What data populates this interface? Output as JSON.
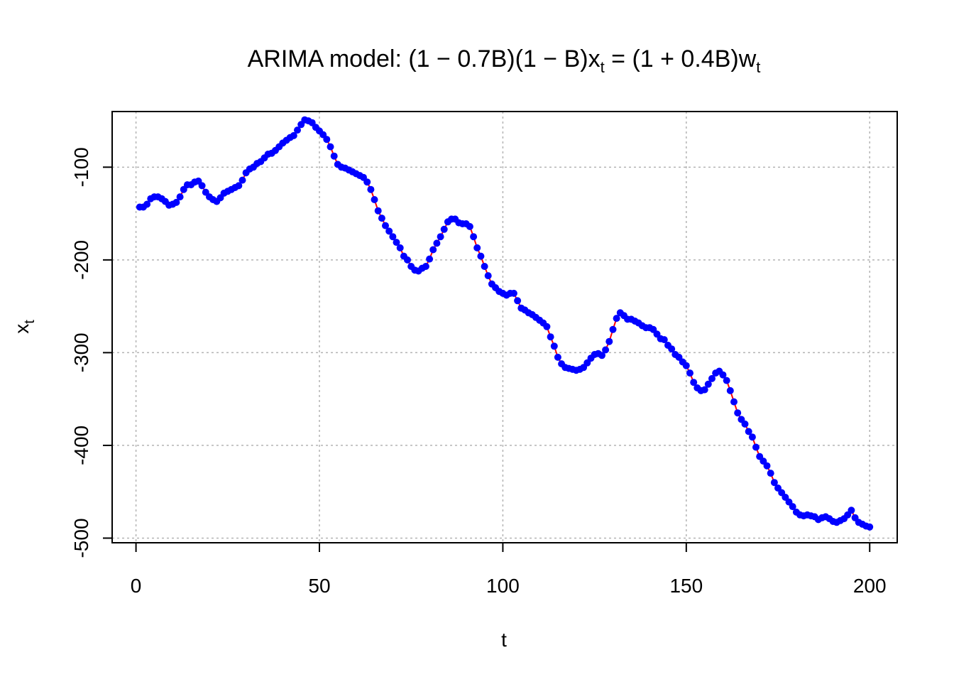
{
  "chart_data": {
    "type": "line",
    "title": {
      "prefix": "ARIMA model: ",
      "lhs_ar": "(1 − 0.7B)",
      "lhs_diff": "(1 − B)",
      "lhs_var": "x",
      "lhs_sub": "t",
      "equals": " = ",
      "rhs_ma": "(1 + 0.4B)",
      "rhs_var": "w",
      "rhs_sub": "t"
    },
    "xlabel": "t",
    "ylabel": {
      "base": "x",
      "sub": "t"
    },
    "xlim": [
      -6.5,
      207.5
    ],
    "ylim": [
      -505,
      -40
    ],
    "xticks": [
      0,
      50,
      100,
      150,
      200
    ],
    "yticks": [
      -500,
      -400,
      -300,
      -200,
      -100
    ],
    "grid": true,
    "line_color": "#ff0000",
    "marker_color": "#0000ff",
    "x": [
      1,
      2,
      3,
      4,
      5,
      6,
      7,
      8,
      9,
      10,
      11,
      12,
      13,
      14,
      15,
      16,
      17,
      18,
      19,
      20,
      21,
      22,
      23,
      24,
      25,
      26,
      27,
      28,
      29,
      30,
      31,
      32,
      33,
      34,
      35,
      36,
      37,
      38,
      39,
      40,
      41,
      42,
      43,
      44,
      45,
      46,
      47,
      48,
      49,
      50,
      51,
      52,
      53,
      54,
      55,
      56,
      57,
      58,
      59,
      60,
      61,
      62,
      63,
      64,
      65,
      66,
      67,
      68,
      69,
      70,
      71,
      72,
      73,
      74,
      75,
      76,
      77,
      78,
      79,
      80,
      81,
      82,
      83,
      84,
      85,
      86,
      87,
      88,
      89,
      90,
      91,
      92,
      93,
      94,
      95,
      96,
      97,
      98,
      99,
      100,
      101,
      102,
      103,
      104,
      105,
      106,
      107,
      108,
      109,
      110,
      111,
      112,
      113,
      114,
      115,
      116,
      117,
      118,
      119,
      120,
      121,
      122,
      123,
      124,
      125,
      126,
      127,
      128,
      129,
      130,
      131,
      132,
      133,
      134,
      135,
      136,
      137,
      138,
      139,
      140,
      141,
      142,
      143,
      144,
      145,
      146,
      147,
      148,
      149,
      150,
      151,
      152,
      153,
      154,
      155,
      156,
      157,
      158,
      159,
      160,
      161,
      162,
      163,
      164,
      165,
      166,
      167,
      168,
      169,
      170,
      171,
      172,
      173,
      174,
      175,
      176,
      177,
      178,
      179,
      180,
      181,
      182,
      183,
      184,
      185,
      186,
      187,
      188,
      189,
      190,
      191,
      192,
      193,
      194,
      195,
      196,
      197,
      198,
      199,
      200
    ],
    "y": [
      -143,
      -143,
      -140,
      -134,
      -132,
      -132,
      -134,
      -137,
      -141,
      -140,
      -138,
      -132,
      -124,
      -119,
      -119,
      -116,
      -115,
      -120,
      -127,
      -132,
      -135,
      -137,
      -133,
      -128,
      -126,
      -124,
      -122,
      -120,
      -114,
      -106,
      -102,
      -100,
      -96,
      -94,
      -90,
      -86,
      -85,
      -82,
      -78,
      -74,
      -71,
      -68,
      -66,
      -60,
      -54,
      -49,
      -50,
      -52,
      -57,
      -61,
      -65,
      -70,
      -78,
      -88,
      -97,
      -100,
      -101,
      -103,
      -105,
      -107,
      -109,
      -111,
      -116,
      -124,
      -135,
      -147,
      -155,
      -163,
      -169,
      -175,
      -181,
      -187,
      -196,
      -200,
      -207,
      -211,
      -212,
      -209,
      -207,
      -199,
      -189,
      -182,
      -175,
      -167,
      -159,
      -156,
      -156,
      -160,
      -161,
      -161,
      -164,
      -175,
      -187,
      -196,
      -207,
      -217,
      -226,
      -230,
      -234,
      -236,
      -238,
      -236,
      -236,
      -244,
      -252,
      -254,
      -257,
      -259,
      -262,
      -265,
      -268,
      -272,
      -283,
      -293,
      -305,
      -312,
      -316,
      -317,
      -318,
      -319,
      -318,
      -316,
      -311,
      -306,
      -302,
      -301,
      -303,
      -297,
      -288,
      -275,
      -263,
      -257,
      -260,
      -264,
      -264,
      -266,
      -268,
      -271,
      -273,
      -273,
      -275,
      -280,
      -285,
      -286,
      -292,
      -296,
      -302,
      -305,
      -310,
      -314,
      -322,
      -332,
      -338,
      -341,
      -340,
      -334,
      -328,
      -322,
      -320,
      -324,
      -330,
      -341,
      -353,
      -365,
      -372,
      -377,
      -385,
      -391,
      -402,
      -412,
      -417,
      -422,
      -430,
      -440,
      -446,
      -451,
      -456,
      -461,
      -466,
      -472,
      -475,
      -476,
      -475,
      -476,
      -477,
      -480,
      -478,
      -477,
      -479,
      -482,
      -483,
      -481,
      -479,
      -475,
      -470,
      -478,
      -483,
      -485,
      -487,
      -488
    ]
  }
}
